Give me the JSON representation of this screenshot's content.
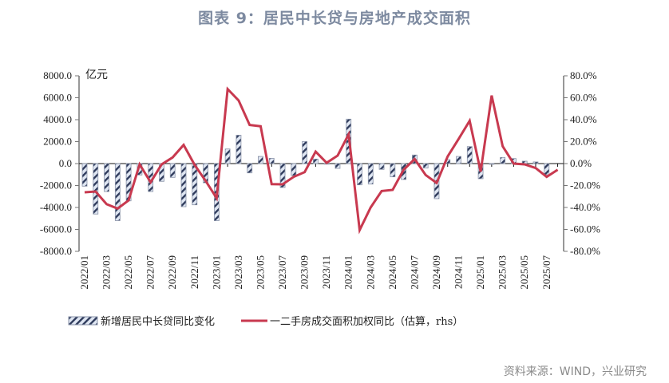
{
  "title": "图表 9：居民中长贷与房地产成交面积",
  "source": "资料来源：WIND，兴业研究",
  "chart_data": {
    "type": "bar+line",
    "ylabel": "亿元",
    "ylim": [
      -8000,
      8000
    ],
    "y_ticks": [
      "8000.0",
      "6000.0",
      "4000.0",
      "2000.0",
      "0.0",
      "-2000.0",
      "-4000.0",
      "-6000.0",
      "-8000.0"
    ],
    "y2lim": [
      -80,
      80
    ],
    "y2_ticks": [
      "80.0%",
      "60.0%",
      "40.0%",
      "20.0%",
      "0.0%",
      "-20.0%",
      "-40.0%",
      "-60.0%",
      "-80.0%"
    ],
    "x_tick_labels": [
      "2022/01",
      "2022/03",
      "2022/05",
      "2022/07",
      "2022/09",
      "2022/11",
      "2023/01",
      "2023/03",
      "2023/05",
      "2023/07",
      "2023/09",
      "2023/11",
      "2024/01",
      "2024/03",
      "2024/05",
      "2024/07",
      "2024/09",
      "2024/11",
      "2025/01",
      "2025/03",
      "2025/05",
      "2025/07"
    ],
    "x": [
      "2022/01",
      "2022/02",
      "2022/03",
      "2022/04",
      "2022/05",
      "2022/06",
      "2022/07",
      "2022/08",
      "2022/09",
      "2022/10",
      "2022/11",
      "2022/12",
      "2023/01",
      "2023/02",
      "2023/03",
      "2023/04",
      "2023/05",
      "2023/06",
      "2023/07",
      "2023/08",
      "2023/09",
      "2023/10",
      "2023/11",
      "2023/12",
      "2024/01",
      "2024/02",
      "2024/03",
      "2024/04",
      "2024/05",
      "2024/06",
      "2024/07",
      "2024/08",
      "2024/09",
      "2024/10",
      "2024/11",
      "2024/12",
      "2025/01",
      "2025/02",
      "2025/03",
      "2025/04",
      "2025/05",
      "2025/06",
      "2025/07",
      "2025/08"
    ],
    "legend_position": "bottom",
    "grid": false,
    "series": [
      {
        "name": "新增居民中长贷同比变化",
        "type": "bar",
        "axis": "left",
        "color": "#3d4a6b",
        "values": [
          -2060,
          -4600,
          -2550,
          -5200,
          -3400,
          -1040,
          -2550,
          -1620,
          -1260,
          -3930,
          -3760,
          -1750,
          -5210,
          1330,
          2590,
          -850,
          650,
          480,
          -2180,
          -1090,
          2010,
          410,
          0,
          -440,
          4050,
          -1940,
          -1870,
          -530,
          -1210,
          -1450,
          780,
          -410,
          -3200,
          360,
          650,
          1550,
          -1380,
          -70,
          560,
          460,
          220,
          150,
          -1020,
          null
        ]
      },
      {
        "name": "一二手房成交面积加权同比（估算，rhs）",
        "type": "line",
        "axis": "right",
        "color": "#c8394f",
        "values": [
          -26.2,
          -25.5,
          -37,
          -41,
          -33.5,
          -0.7,
          -17,
          -0.7,
          5.6,
          17,
          -1.2,
          -15.8,
          -31.5,
          67.9,
          57.5,
          35.2,
          34,
          -18.7,
          -18.9,
          -12.1,
          -7.8,
          10.9,
          0.7,
          7.3,
          26.7,
          -60.6,
          -40,
          -25,
          -24,
          -5.6,
          4.1,
          -10.4,
          -17.7,
          6.5,
          22.5,
          39,
          -7.3,
          62,
          15.8,
          0,
          -0.7,
          -4.1,
          -12.1,
          -5.6
        ]
      }
    ]
  }
}
